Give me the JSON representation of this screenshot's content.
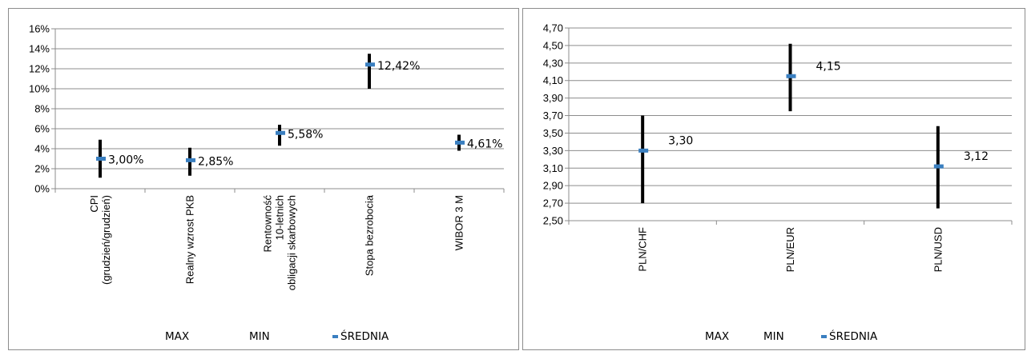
{
  "chart_data": [
    {
      "type": "range",
      "categories": [
        [
          "CPI",
          "(grudzień/grudzień)"
        ],
        [
          "Realny wzrost PKB"
        ],
        [
          "Rentowność",
          "10-letnich",
          "obligacji skarbowych"
        ],
        [
          "Stopa bezrobocia"
        ],
        [
          "WIBOR 3 M"
        ]
      ],
      "max": [
        0.049,
        0.041,
        0.064,
        0.135,
        0.054
      ],
      "min": [
        0.011,
        0.013,
        0.043,
        0.1,
        0.038
      ],
      "srednia": [
        0.03,
        0.0285,
        0.0558,
        0.1242,
        0.0461
      ],
      "data_labels": [
        "3,00%",
        "2,85%",
        "5,58%",
        "12,42%",
        "4,61%"
      ],
      "ylim": [
        0,
        0.16
      ],
      "yticks": [
        "0%",
        "2%",
        "4%",
        "6%",
        "8%",
        "10%",
        "12%",
        "14%",
        "16%"
      ],
      "grid": true,
      "legend": [
        "MAX",
        "MIN",
        "ŚREDNIA"
      ],
      "legend_position": "bottom",
      "colors": {
        "range": "#000000",
        "mean": "#3a7fc0",
        "grid": "#8c8c8c"
      }
    },
    {
      "type": "range",
      "categories": [
        [
          "PLN/CHF"
        ],
        [
          "PLN/EUR"
        ],
        [
          "PLN/USD"
        ]
      ],
      "max": [
        3.7,
        4.52,
        3.58
      ],
      "min": [
        2.7,
        3.75,
        2.64
      ],
      "srednia": [
        3.3,
        4.15,
        3.12
      ],
      "data_labels": [
        "3,30",
        "4,15",
        "3,12"
      ],
      "ylim": [
        2.5,
        4.7
      ],
      "yticks": [
        "2,50",
        "2,70",
        "2,90",
        "3,10",
        "3,30",
        "3,50",
        "3,70",
        "3,90",
        "4,10",
        "4,30",
        "4,50",
        "4,70"
      ],
      "grid": true,
      "legend": [
        "MAX",
        "MIN",
        "ŚREDNIA"
      ],
      "legend_position": "bottom",
      "colors": {
        "range": "#000000",
        "mean": "#3a7fc0",
        "grid": "#8c8c8c"
      }
    }
  ]
}
